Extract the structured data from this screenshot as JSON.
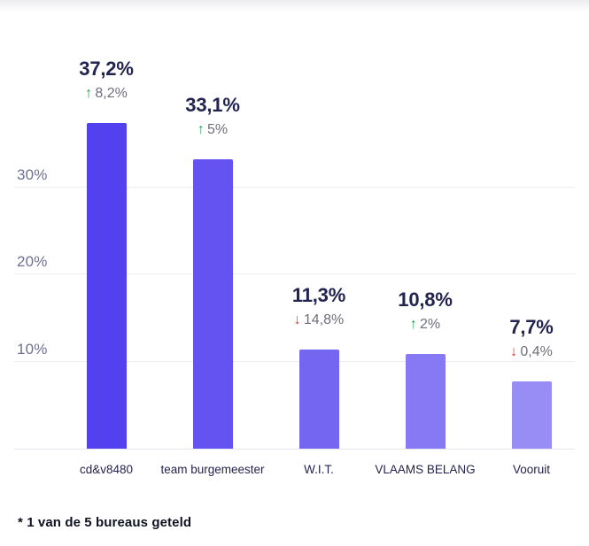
{
  "chart_data": {
    "type": "bar",
    "title": "",
    "xlabel": "",
    "ylabel": "",
    "categories": [
      "cd&v8480",
      "team burgemeester",
      "W.I.T.",
      "VLAAMS BELANG",
      "Vooruit"
    ],
    "values": [
      37.2,
      33.1,
      11.3,
      10.8,
      7.7
    ],
    "value_labels": [
      "37,2%",
      "33,1%",
      "11,3%",
      "10,8%",
      "7,7%"
    ],
    "deltas": [
      {
        "direction": "up",
        "text": "8,2%"
      },
      {
        "direction": "up",
        "text": "5%"
      },
      {
        "direction": "down",
        "text": "14,8%"
      },
      {
        "direction": "up",
        "text": "2%"
      },
      {
        "direction": "down",
        "text": "0,4%"
      }
    ],
    "bar_colors": [
      "#5340ee",
      "#6453f0",
      "#7566f1",
      "#8679f3",
      "#988cf5"
    ],
    "y_ticks": [
      {
        "value": 10,
        "label": "10%"
      },
      {
        "value": 20,
        "label": "20%"
      },
      {
        "value": 30,
        "label": "30%"
      }
    ],
    "ylim": [
      0,
      40
    ],
    "grid": true,
    "legend": false
  },
  "icons": {
    "up_arrow": "↑",
    "down_arrow": "↓"
  },
  "colors": {
    "value_text": "#23234f",
    "delta_text": "#6e6f7a",
    "up": "#1ea44d",
    "down": "#e1392d",
    "gridline": "#ededf3",
    "axis_tick_text": "#6e7191",
    "category_text": "#23234f",
    "bar_base": "#5340ee"
  },
  "footer": {
    "note": "* 1 van de 5 bureaus geteld"
  }
}
